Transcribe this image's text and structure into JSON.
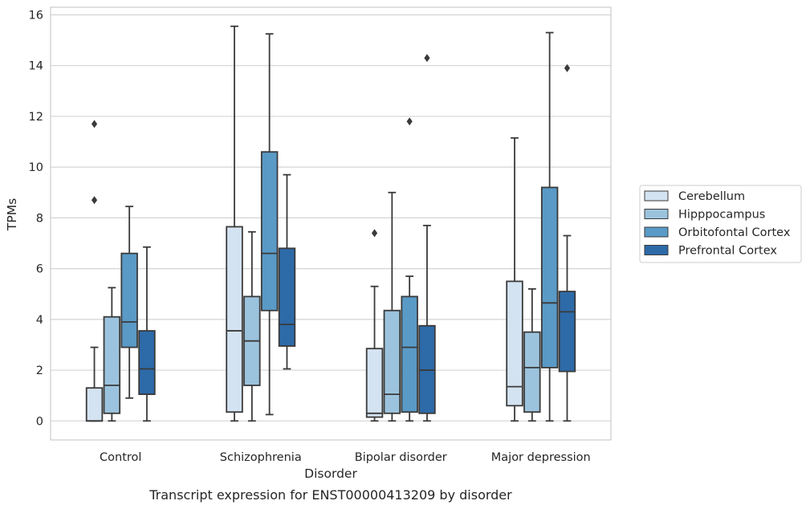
{
  "chart_data": {
    "type": "box",
    "title": "",
    "caption": "Transcript expression for ENST00000413209 by disorder",
    "xlabel": "Disorder",
    "ylabel": "TPMs",
    "ylim": [
      -0.75,
      16.3
    ],
    "yticks": [
      0,
      2,
      4,
      6,
      8,
      10,
      12,
      14,
      16
    ],
    "grid": "horizontal",
    "legend_position": "right",
    "categories": [
      "Control",
      "Schizophrenia",
      "Bipolar disorder",
      "Major depression"
    ],
    "series": [
      {
        "name": "Cerebellum",
        "color": "#d4e3f1",
        "boxes": [
          {
            "whisker_low": 0.0,
            "q1": 0.0,
            "median": 0.0,
            "q3": 1.3,
            "whisker_high": 2.9,
            "outliers": [
              8.7,
              11.7
            ]
          },
          {
            "whisker_low": 0.0,
            "q1": 0.35,
            "median": 3.55,
            "q3": 7.65,
            "whisker_high": 15.55,
            "outliers": []
          },
          {
            "whisker_low": 0.0,
            "q1": 0.15,
            "median": 0.3,
            "q3": 2.85,
            "whisker_high": 5.3,
            "outliers": [
              7.4
            ]
          },
          {
            "whisker_low": 0.0,
            "q1": 0.6,
            "median": 1.35,
            "q3": 5.5,
            "whisker_high": 11.15,
            "outliers": []
          }
        ]
      },
      {
        "name": "Hipppocampus",
        "color": "#9cc3dd",
        "boxes": [
          {
            "whisker_low": 0.0,
            "q1": 0.3,
            "median": 1.4,
            "q3": 4.1,
            "whisker_high": 5.25,
            "outliers": []
          },
          {
            "whisker_low": 0.0,
            "q1": 1.4,
            "median": 3.15,
            "q3": 4.9,
            "whisker_high": 7.45,
            "outliers": []
          },
          {
            "whisker_low": 0.0,
            "q1": 0.3,
            "median": 1.05,
            "q3": 4.35,
            "whisker_high": 9.0,
            "outliers": []
          },
          {
            "whisker_low": 0.0,
            "q1": 0.35,
            "median": 2.1,
            "q3": 3.5,
            "whisker_high": 5.2,
            "outliers": []
          }
        ]
      },
      {
        "name": "Orbitofontal Cortex",
        "color": "#5a9ac6",
        "boxes": [
          {
            "whisker_low": 0.9,
            "q1": 2.9,
            "median": 3.9,
            "q3": 6.6,
            "whisker_high": 8.45,
            "outliers": []
          },
          {
            "whisker_low": 0.25,
            "q1": 4.35,
            "median": 6.6,
            "q3": 10.6,
            "whisker_high": 15.25,
            "outliers": []
          },
          {
            "whisker_low": 0.0,
            "q1": 0.35,
            "median": 2.9,
            "q3": 4.9,
            "whisker_high": 5.7,
            "outliers": [
              11.8
            ]
          },
          {
            "whisker_low": 0.0,
            "q1": 2.1,
            "median": 4.65,
            "q3": 9.2,
            "whisker_high": 15.3,
            "outliers": []
          }
        ]
      },
      {
        "name": "Prefrontal Cortex",
        "color": "#2d6aa8",
        "boxes": [
          {
            "whisker_low": 0.0,
            "q1": 1.05,
            "median": 2.05,
            "q3": 3.55,
            "whisker_high": 6.85,
            "outliers": []
          },
          {
            "whisker_low": 2.05,
            "q1": 2.95,
            "median": 3.8,
            "q3": 6.8,
            "whisker_high": 9.7,
            "outliers": []
          },
          {
            "whisker_low": 0.0,
            "q1": 0.3,
            "median": 2.0,
            "q3": 3.75,
            "whisker_high": 7.7,
            "outliers": [
              14.3
            ]
          },
          {
            "whisker_low": 0.0,
            "q1": 1.95,
            "median": 4.3,
            "q3": 5.1,
            "whisker_high": 7.3,
            "outliers": [
              13.9
            ]
          }
        ]
      }
    ]
  }
}
